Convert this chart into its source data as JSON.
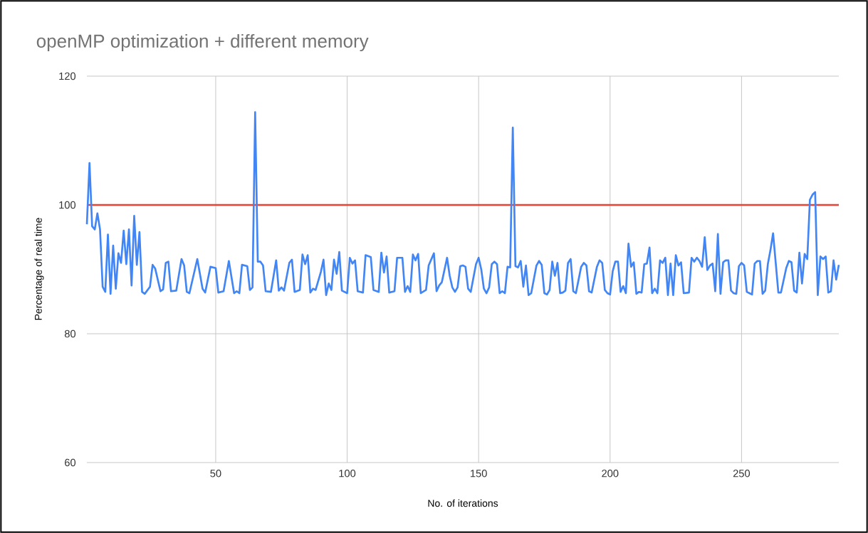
{
  "chart_data": {
    "type": "line",
    "title": "openMP optimization + different memory",
    "xlabel": "No. of iterations",
    "ylabel": "Percentage of real time",
    "xlim": [
      1,
      287
    ],
    "ylim": [
      60,
      120
    ],
    "xticks": [
      50,
      100,
      150,
      200,
      250
    ],
    "yticks": [
      60,
      80,
      100,
      120
    ],
    "grid": true,
    "ref_lines": [
      {
        "axis": "y",
        "value": 100,
        "color": "#ea4335"
      }
    ],
    "series": [
      {
        "color": "#4285f4",
        "x": [
          1,
          2,
          3,
          4,
          5,
          6,
          7,
          8,
          9,
          10,
          11,
          12,
          13,
          14,
          15,
          16,
          17,
          18,
          19,
          20,
          21,
          22,
          23,
          25,
          26,
          27,
          29,
          30,
          31,
          32,
          33,
          35,
          37,
          38,
          39,
          40,
          43,
          45,
          46,
          48,
          50,
          51,
          53,
          55,
          57,
          58,
          59,
          60,
          62,
          63,
          64,
          65,
          66,
          67,
          68,
          69,
          71,
          73,
          74,
          75,
          76,
          78,
          79,
          80,
          82,
          83,
          84,
          85,
          86,
          87,
          88,
          90,
          91,
          92,
          93,
          94,
          95,
          96,
          97,
          98,
          100,
          101,
          102,
          103,
          104,
          106,
          107,
          109,
          110,
          112,
          113,
          114,
          115,
          116,
          118,
          119,
          121,
          122,
          123,
          124,
          125,
          126,
          127,
          128,
          130,
          131,
          133,
          134,
          135,
          136,
          138,
          139,
          140,
          141,
          142,
          143,
          144,
          145,
          146,
          147,
          149,
          150,
          151,
          152,
          153,
          154,
          155,
          156,
          157,
          158,
          159,
          160,
          161,
          162,
          163,
          164,
          165,
          166,
          167,
          168,
          169,
          170,
          172,
          173,
          174,
          175,
          176,
          177,
          178,
          179,
          180,
          181,
          182,
          183,
          184,
          185,
          186,
          187,
          189,
          190,
          191,
          192,
          193,
          195,
          196,
          197,
          198,
          199,
          200,
          201,
          202,
          203,
          204,
          205,
          206,
          207,
          208,
          209,
          210,
          211,
          212,
          213,
          214,
          215,
          216,
          217,
          218,
          219,
          220,
          221,
          222,
          223,
          224,
          225,
          226,
          227,
          228,
          230,
          231,
          232,
          233,
          234,
          235,
          236,
          237,
          238,
          239,
          240,
          241,
          242,
          243,
          244,
          245,
          246,
          247,
          248,
          249,
          250,
          251,
          252,
          253,
          254,
          255,
          256,
          257,
          258,
          259,
          260,
          261,
          262,
          263,
          264,
          265,
          267,
          268,
          269,
          270,
          271,
          272,
          273,
          274,
          275,
          276,
          277,
          278,
          279,
          280,
          281,
          282,
          283,
          284,
          285,
          286,
          287
        ],
        "values": [
          97,
          106.5,
          96.7,
          96.2,
          98.7,
          96.2,
          87.3,
          86.5,
          95.4,
          86.2,
          93.7,
          87,
          92.5,
          91,
          96,
          90.8,
          96.2,
          87.5,
          98.3,
          90.7,
          95.8,
          86.5,
          86.2,
          87.3,
          90.7,
          90.1,
          86.6,
          86.9,
          91,
          91.2,
          86.6,
          86.7,
          91.6,
          90.6,
          86.5,
          86.3,
          91.6,
          87,
          86.4,
          90.4,
          90.2,
          86.4,
          86.6,
          91.3,
          86.3,
          86.6,
          86.3,
          90.7,
          90.5,
          86.8,
          87.2,
          114.4,
          91.2,
          91.2,
          90.6,
          86.6,
          86.5,
          91.4,
          86.7,
          87.2,
          86.7,
          91,
          91.5,
          86.5,
          86.8,
          92.3,
          90.8,
          92.2,
          86.4,
          87,
          86.8,
          89.6,
          91.5,
          86,
          87.8,
          86.8,
          91.5,
          89.3,
          92.7,
          86.7,
          86.3,
          91.8,
          90.9,
          91.4,
          86.6,
          86.4,
          92.2,
          91.9,
          86.8,
          86.5,
          92.6,
          89.5,
          92,
          86.4,
          86.6,
          91.8,
          91.8,
          86.5,
          87.4,
          86.5,
          92.3,
          91.4,
          92.4,
          86.3,
          86.8,
          90.6,
          92.5,
          86.6,
          87.5,
          88,
          91.8,
          89,
          87.2,
          86.5,
          87.2,
          90.5,
          90.6,
          90.4,
          87,
          86.5,
          90.8,
          91.8,
          90,
          87,
          86.3,
          87.2,
          90.8,
          91.2,
          90.8,
          86.3,
          86.6,
          86.3,
          90.4,
          90.3,
          112,
          90.5,
          90.3,
          91.3,
          87.3,
          90.6,
          86,
          86.3,
          90.6,
          91.3,
          90.7,
          86.3,
          86.1,
          86.8,
          91.2,
          89,
          91,
          86.3,
          86.4,
          86.7,
          91,
          91.6,
          86.6,
          86.3,
          90.4,
          91,
          90.6,
          86.6,
          86.4,
          90.4,
          91.4,
          91,
          86.8,
          86.3,
          86.1,
          89.7,
          91.2,
          91.2,
          86.5,
          87.4,
          86.3,
          94,
          90.4,
          91.1,
          86.2,
          86.5,
          86.4,
          90.8,
          90.9,
          93.4,
          86.3,
          87,
          86.3,
          91.4,
          91,
          91.8,
          86,
          90.9,
          86,
          92.2,
          90.6,
          91.1,
          86.3,
          86.4,
          91.8,
          91.2,
          91.8,
          91.3,
          90.4,
          95,
          89.9,
          90.6,
          90.9,
          86.6,
          95.5,
          86.2,
          91.1,
          91.4,
          91.4,
          86.7,
          86.3,
          86.2,
          90.5,
          91,
          90.6,
          86.5,
          86.3,
          86.1,
          90.9,
          91.3,
          91.3,
          86.2,
          86.7,
          90.8,
          93,
          95.6,
          91,
          86.4,
          86.4,
          90.2,
          91.3,
          91.1,
          86.7,
          86.4,
          92.6,
          87.8,
          92.4,
          91.6,
          100.8,
          101.6,
          102,
          86,
          92,
          91.6,
          92,
          86.4,
          86.6,
          91.4,
          88.4,
          90.7
        ]
      }
    ]
  }
}
